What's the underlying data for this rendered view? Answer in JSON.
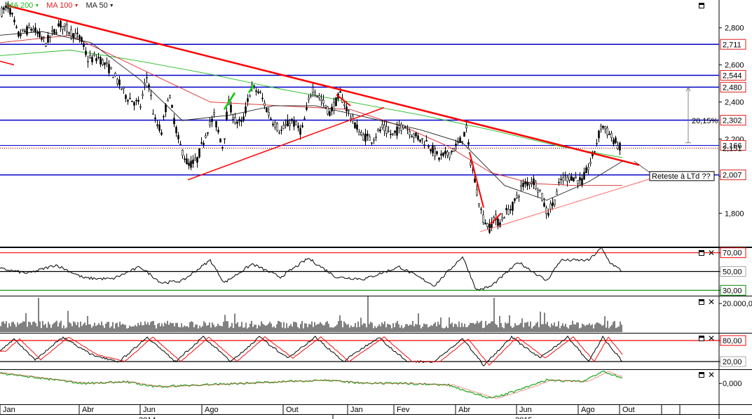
{
  "legend": {
    "ma200": {
      "label": "MA 200",
      "color": "#22bb22"
    },
    "ma100": {
      "label": "MA 100",
      "color": "#dd2222"
    },
    "ma50": {
      "label": "MA 50",
      "color": "#222222"
    }
  },
  "annotation": {
    "pct": "20,15%",
    "callout": "Reteste à LTd ??"
  },
  "chart_data": {
    "type": "candlestick",
    "price_axis": {
      "ticks": [
        1.8,
        2.0,
        2.2,
        2.4,
        2.6,
        2.8
      ],
      "tick_labels": [
        "1,800",
        "2,000",
        "2,200",
        "2,400",
        "2,600",
        "2,800"
      ],
      "range": [
        1.62,
        2.95
      ],
      "levels": [
        {
          "value": 2.711,
          "label": "2,711"
        },
        {
          "value": 2.544,
          "label": "2,544"
        },
        {
          "value": 2.48,
          "label": "2,480"
        },
        {
          "value": 2.302,
          "label": "2,302"
        },
        {
          "value": 2.166,
          "label": "2,166"
        },
        {
          "value": 2.007,
          "label": "2,007"
        }
      ],
      "last_price": {
        "value": 2.151,
        "label": "2,151"
      }
    },
    "x_axis": {
      "months": [
        "Jan",
        "Abr",
        "Jun",
        "Ago",
        "Out",
        "Jan",
        "Fev",
        "Abr",
        "Jun",
        "Ago",
        "Out"
      ],
      "years": [
        "2014",
        "2015"
      ]
    },
    "price_path": [
      [
        0,
        2.88
      ],
      [
        12,
        2.92
      ],
      [
        25,
        2.76
      ],
      [
        45,
        2.8
      ],
      [
        65,
        2.72
      ],
      [
        85,
        2.82
      ],
      [
        100,
        2.78
      ],
      [
        115,
        2.74
      ],
      [
        125,
        2.63
      ],
      [
        140,
        2.64
      ],
      [
        160,
        2.56
      ],
      [
        180,
        2.43
      ],
      [
        200,
        2.38
      ],
      [
        210,
        2.55
      ],
      [
        220,
        2.3
      ],
      [
        230,
        2.24
      ],
      [
        240,
        2.45
      ],
      [
        255,
        2.18
      ],
      [
        268,
        2.06
      ],
      [
        280,
        2.08
      ],
      [
        295,
        2.25
      ],
      [
        305,
        2.32
      ],
      [
        318,
        2.15
      ],
      [
        325,
        2.4
      ],
      [
        335,
        2.3
      ],
      [
        345,
        2.28
      ],
      [
        358,
        2.48
      ],
      [
        370,
        2.45
      ],
      [
        385,
        2.32
      ],
      [
        400,
        2.24
      ],
      [
        415,
        2.3
      ],
      [
        430,
        2.24
      ],
      [
        445,
        2.48
      ],
      [
        460,
        2.4
      ],
      [
        470,
        2.34
      ],
      [
        485,
        2.44
      ],
      [
        500,
        2.32
      ],
      [
        515,
        2.22
      ],
      [
        530,
        2.2
      ],
      [
        545,
        2.26
      ],
      [
        560,
        2.22
      ],
      [
        575,
        2.28
      ],
      [
        590,
        2.22
      ],
      [
        610,
        2.18
      ],
      [
        625,
        2.1
      ],
      [
        640,
        2.12
      ],
      [
        655,
        2.18
      ],
      [
        665,
        2.25
      ],
      [
        670,
        2.1
      ],
      [
        680,
        1.92
      ],
      [
        688,
        1.78
      ],
      [
        698,
        1.72
      ],
      [
        705,
        1.78
      ],
      [
        712,
        1.74
      ],
      [
        720,
        1.8
      ],
      [
        730,
        1.83
      ],
      [
        745,
        1.95
      ],
      [
        760,
        1.98
      ],
      [
        770,
        1.92
      ],
      [
        780,
        1.8
      ],
      [
        790,
        1.86
      ],
      [
        800,
        1.98
      ],
      [
        815,
        2.0
      ],
      [
        830,
        1.97
      ],
      [
        845,
        2.1
      ],
      [
        858,
        2.28
      ],
      [
        870,
        2.22
      ],
      [
        885,
        2.15
      ]
    ],
    "moving_averages": [
      {
        "name": "MA 200",
        "color": "#22bb22",
        "path": [
          [
            0,
            2.65
          ],
          [
            100,
            2.68
          ],
          [
            200,
            2.62
          ],
          [
            300,
            2.55
          ],
          [
            400,
            2.47
          ],
          [
            500,
            2.4
          ],
          [
            600,
            2.33
          ],
          [
            700,
            2.25
          ],
          [
            800,
            2.16
          ],
          [
            888,
            2.1
          ]
        ]
      },
      {
        "name": "MA 100",
        "color": "#dd2222",
        "path": [
          [
            0,
            2.72
          ],
          [
            100,
            2.76
          ],
          [
            200,
            2.58
          ],
          [
            300,
            2.4
          ],
          [
            400,
            2.38
          ],
          [
            500,
            2.36
          ],
          [
            580,
            2.26
          ],
          [
            640,
            2.16
          ],
          [
            700,
            2.02
          ],
          [
            760,
            1.96
          ],
          [
            820,
            1.95
          ],
          [
            888,
            1.95
          ]
        ]
      },
      {
        "name": "MA 50",
        "color": "#222222",
        "path": [
          [
            0,
            2.76
          ],
          [
            60,
            2.78
          ],
          [
            130,
            2.72
          ],
          [
            200,
            2.52
          ],
          [
            260,
            2.3
          ],
          [
            330,
            2.33
          ],
          [
            390,
            2.38
          ],
          [
            450,
            2.38
          ],
          [
            520,
            2.32
          ],
          [
            600,
            2.25
          ],
          [
            660,
            2.18
          ],
          [
            720,
            1.95
          ],
          [
            780,
            1.87
          ],
          [
            840,
            1.97
          ],
          [
            888,
            2.08
          ]
        ]
      }
    ],
    "trendlines": [
      {
        "from": [
          10,
          2.92
        ],
        "to": [
          912,
          2.06
        ],
        "color": "#ff0000",
        "width": 2.5
      },
      {
        "from": [
          268,
          1.98
        ],
        "to": [
          548,
          2.37
        ],
        "color": "#ff0000",
        "width": 1.5
      },
      {
        "from": [
          685,
          1.7
        ],
        "to": [
          940,
          2.0
        ],
        "color": "#ff6666",
        "width": 1
      },
      {
        "from": [
          0,
          2.62
        ],
        "to": [
          20,
          2.6
        ],
        "color": "#ff0000",
        "width": 1.5
      },
      {
        "from": [
          320,
          2.36
        ],
        "to": [
          335,
          2.45
        ],
        "color": "#00cc00",
        "width": 2.5
      },
      {
        "from": [
          355,
          2.45
        ],
        "to": [
          362,
          2.49
        ],
        "color": "#00cc00",
        "width": 2.5
      },
      {
        "from": [
          670,
          2.13
        ],
        "to": [
          690,
          1.83
        ],
        "color": "#ff0000",
        "width": 2
      },
      {
        "from": [
          700,
          1.74
        ],
        "to": [
          715,
          1.8
        ],
        "color": "#ff0000",
        "width": 2
      },
      {
        "from": [
          480,
          2.44
        ],
        "to": [
          500,
          2.38
        ],
        "color": "#ff0000",
        "width": 2
      }
    ],
    "indicators": [
      {
        "name": "RSI",
        "levels": [
          {
            "value": 70,
            "label": "70,00",
            "color": "#ff0000"
          },
          {
            "value": 50,
            "label": "50,00",
            "color": "#000000"
          },
          {
            "value": 30,
            "label": "30,00",
            "color": "#008800"
          }
        ],
        "range": [
          25,
          75
        ],
        "path": [
          [
            0,
            53
          ],
          [
            40,
            48
          ],
          [
            80,
            57
          ],
          [
            120,
            43
          ],
          [
            160,
            42
          ],
          [
            200,
            55
          ],
          [
            230,
            38
          ],
          [
            260,
            40
          ],
          [
            300,
            62
          ],
          [
            320,
            38
          ],
          [
            360,
            58
          ],
          [
            400,
            44
          ],
          [
            440,
            64
          ],
          [
            480,
            44
          ],
          [
            520,
            42
          ],
          [
            570,
            55
          ],
          [
            620,
            35
          ],
          [
            660,
            66
          ],
          [
            680,
            30
          ],
          [
            700,
            34
          ],
          [
            740,
            60
          ],
          [
            780,
            40
          ],
          [
            800,
            62
          ],
          [
            840,
            62
          ],
          [
            858,
            75
          ],
          [
            870,
            60
          ],
          [
            888,
            50
          ]
        ]
      },
      {
        "name": "Volume",
        "levels": [
          {
            "value": 20000,
            "label": "20.000,0",
            "color": null
          }
        ],
        "range": [
          0,
          25000
        ],
        "spikes": [
          [
            55,
            24000
          ],
          [
            150,
            18000
          ],
          [
            525,
            25000
          ],
          [
            705,
            24000
          ]
        ]
      },
      {
        "name": "Stochastic",
        "levels": [
          {
            "value": 80,
            "label": "80,00",
            "color": "#ff0000"
          },
          {
            "value": 20,
            "label": "20,00",
            "color": "#000000"
          }
        ],
        "range": [
          0,
          100
        ],
        "path": [
          [
            0,
            50
          ],
          [
            20,
            85
          ],
          [
            50,
            25
          ],
          [
            90,
            90
          ],
          [
            130,
            40
          ],
          [
            170,
            20
          ],
          [
            210,
            90
          ],
          [
            250,
            20
          ],
          [
            290,
            90
          ],
          [
            330,
            20
          ],
          [
            370,
            90
          ],
          [
            410,
            30
          ],
          [
            450,
            90
          ],
          [
            490,
            20
          ],
          [
            540,
            90
          ],
          [
            580,
            20
          ],
          [
            620,
            20
          ],
          [
            660,
            85
          ],
          [
            690,
            10
          ],
          [
            730,
            90
          ],
          [
            770,
            30
          ],
          [
            810,
            90
          ],
          [
            840,
            20
          ],
          [
            860,
            90
          ],
          [
            888,
            20
          ]
        ]
      },
      {
        "name": "MACD",
        "levels": [
          {
            "value": 0,
            "label": "0,000",
            "color": null
          }
        ],
        "range": [
          -0.12,
          0.08
        ],
        "path": [
          [
            0,
            0.06
          ],
          [
            60,
            0.03
          ],
          [
            120,
            0.0
          ],
          [
            180,
            0.01
          ],
          [
            220,
            -0.02
          ],
          [
            280,
            -0.01
          ],
          [
            340,
            0.0
          ],
          [
            400,
            0.01
          ],
          [
            460,
            0.02
          ],
          [
            520,
            0.0
          ],
          [
            580,
            0.0
          ],
          [
            640,
            -0.01
          ],
          [
            700,
            -0.09
          ],
          [
            740,
            -0.04
          ],
          [
            780,
            0.02
          ],
          [
            830,
            0.01
          ],
          [
            860,
            0.07
          ],
          [
            888,
            0.03
          ]
        ]
      }
    ]
  }
}
